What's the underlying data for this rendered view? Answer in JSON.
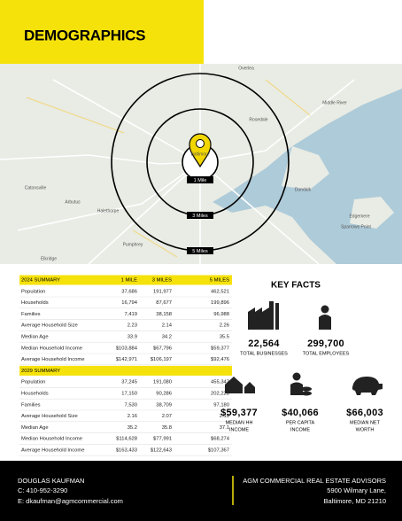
{
  "header": {
    "title": "DEMOGRAPHICS"
  },
  "map": {
    "rings": [
      "1 Mile",
      "3 Miles",
      "5 Miles"
    ],
    "places": [
      "Overlea",
      "Rosedale",
      "Baltimore",
      "Catonsville",
      "Arbutus",
      "Halethorpe",
      "Dundalk",
      "Middle River",
      "Edgemere",
      "Sparrows Point",
      "Elkridge",
      "Pumphrey"
    ]
  },
  "summary": [
    {
      "title": "2024 SUMMARY",
      "columns": [
        "1 MILE",
        "3 MILES",
        "5 MILES"
      ],
      "rows": [
        [
          "Population",
          "37,686",
          "191,977",
          "462,521"
        ],
        [
          "Households",
          "16,794",
          "87,677",
          "199,896"
        ],
        [
          "Families",
          "7,419",
          "38,158",
          "96,988"
        ],
        [
          "Average Household Size",
          "2.23",
          "2.14",
          "2.26"
        ],
        [
          "Median Age",
          "33.9",
          "34.2",
          "35.5"
        ],
        [
          "Median Household Income",
          "$103,884",
          "$67,796",
          "$59,377"
        ],
        [
          "Average Household Income",
          "$142,971",
          "$106,197",
          "$92,476"
        ]
      ]
    },
    {
      "title": "2029 SUMMARY",
      "rows": [
        [
          "Population",
          "37,245",
          "191,080",
          "455,347"
        ],
        [
          "Households",
          "17,150",
          "90,286",
          "202,228"
        ],
        [
          "Families",
          "7,530",
          "38,709",
          "97,180"
        ],
        [
          "Average Household Size",
          "2.16",
          "2.07",
          "2.19"
        ],
        [
          "Median Age",
          "35.2",
          "35.8",
          "37.1"
        ],
        [
          "Median Household Income",
          "$114,628",
          "$77,991",
          "$68,274"
        ],
        [
          "Average Household Income",
          "$163,433",
          "$122,643",
          "$107,367"
        ]
      ]
    }
  ],
  "key_facts": {
    "title": "KEY FACTS",
    "facts": [
      {
        "value": "22,564",
        "label": [
          "TOTAL BUSINESSES"
        ]
      },
      {
        "value": "299,700",
        "label": [
          "TOTAL EMPLOYEES"
        ]
      },
      {
        "value": "$59,377",
        "label": [
          "MEDIAN HH",
          "INCOME"
        ]
      },
      {
        "value": "$40,066",
        "label": [
          "PER CAPITA",
          "INCOME"
        ]
      },
      {
        "value": "$66,003",
        "label": [
          "MEDIAN NET",
          "WORTH"
        ]
      }
    ]
  },
  "footer": {
    "agent": {
      "name": "DOUGLAS KAUFMAN",
      "phone": "C: 410-952-3290",
      "email": "E: dkaufman@agmcommercial.com"
    },
    "company": {
      "name": "AGM COMMERCIAL REAL ESTATE ADVISORS",
      "street": "5900 Wilmary Lane,",
      "city": "Baltimore, MD 21210"
    }
  }
}
